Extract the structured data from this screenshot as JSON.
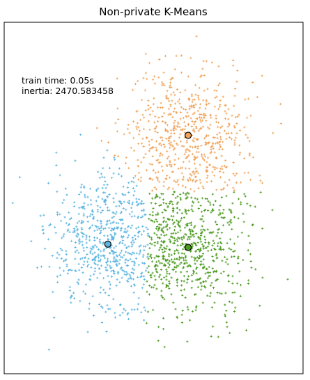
{
  "chart_data": {
    "type": "scatter",
    "title": "Non-private K-Means",
    "xlabel": "",
    "ylabel": "",
    "xlim": [
      -8,
      8
    ],
    "ylim": [
      -8,
      8
    ],
    "grid": false,
    "ticks_visible": false,
    "annotations": [
      "train time: 0.05s",
      "inertia: 2470.583458"
    ],
    "marker": "+",
    "cluster_count": 3,
    "series": [
      {
        "color": "#5ab4e0",
        "approx_points": 650,
        "spread": [
          1.6,
          1.6
        ],
        "centroid": [
          -2.45,
          -2.1
        ]
      },
      {
        "color": "#f0a35a",
        "approx_points": 650,
        "spread": [
          1.6,
          1.6
        ],
        "centroid": [
          1.85,
          2.85
        ]
      },
      {
        "color": "#4a9a1e",
        "approx_points": 650,
        "spread": [
          1.6,
          1.6
        ],
        "centroid": [
          1.85,
          -2.25
        ]
      }
    ],
    "centroid_edge_color": "#000000"
  }
}
